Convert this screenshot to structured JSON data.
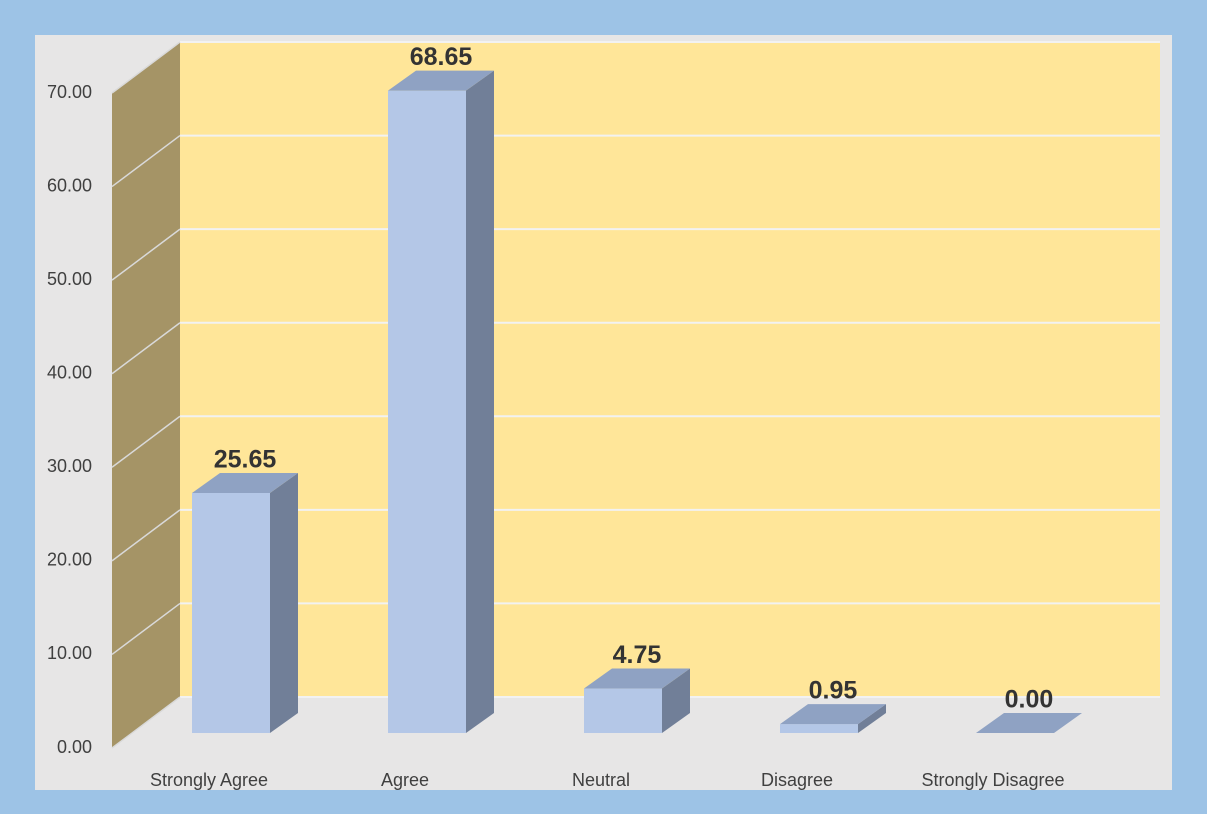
{
  "chart_data": {
    "type": "bar3d",
    "categories": [
      "Strongly Agree",
      "Agree",
      "Neutral",
      "Disagree",
      "Strongly Disagree"
    ],
    "values": [
      25.65,
      68.65,
      4.75,
      0.95,
      0
    ],
    "value_labels": [
      "25.65",
      "68.65",
      "4.75",
      "0.95",
      "0.00"
    ],
    "color": "#b4c7e7",
    "ylim": [
      0,
      70
    ],
    "yticks": [
      {
        "value": 0,
        "label": "0.00"
      },
      {
        "value": 10,
        "label": "10.00"
      },
      {
        "value": 20,
        "label": "20.00"
      },
      {
        "value": 30,
        "label": "30.00"
      },
      {
        "value": 40,
        "label": "40.00"
      },
      {
        "value": 50,
        "label": "50.00"
      },
      {
        "value": 60,
        "label": "60.00"
      },
      {
        "value": 70,
        "label": "70.00"
      }
    ],
    "grid": true
  }
}
